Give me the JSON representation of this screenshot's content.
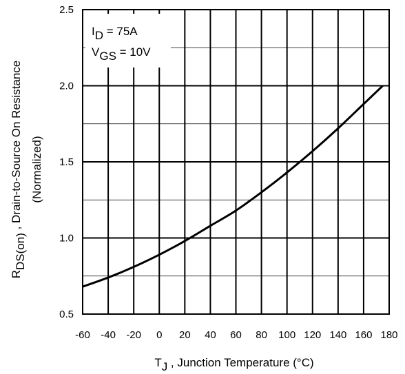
{
  "chart_data": {
    "type": "line",
    "title": "",
    "annotations": {
      "id": {
        "base": "I",
        "sub": "D",
        "rest": " = 75A"
      },
      "vgs": {
        "base": "V",
        "sub": "GS",
        "rest": " = 10V"
      }
    },
    "xlabel": {
      "base": "T",
      "sub": "J",
      "rest": " , Junction Temperature (°C)"
    },
    "ylabel": {
      "base": "R",
      "sub": "DS(on)",
      "rest": " , Drain-to-Source On Resistance",
      "line2": "(Normalized)"
    },
    "xlim": [
      -60,
      180
    ],
    "ylim": [
      0.5,
      2.5
    ],
    "x_ticks": [
      -60,
      -40,
      -20,
      0,
      20,
      40,
      60,
      80,
      100,
      120,
      140,
      160,
      180
    ],
    "x_tick_labels": [
      "-60",
      "-40",
      "-20",
      "0",
      "20",
      "40",
      "60",
      "80",
      "100",
      "120",
      "140",
      "160",
      "180"
    ],
    "y_ticks": [
      0.5,
      1.0,
      1.5,
      2.0,
      2.5
    ],
    "y_tick_labels": [
      "0.5",
      "1.0",
      "1.5",
      "2.0",
      "2.5"
    ],
    "y_minor_gridlines": [
      0.75,
      1.25,
      1.75,
      2.25
    ],
    "grid": true,
    "series": [
      {
        "x": [
          -60,
          -40,
          -20,
          0,
          20,
          40,
          60,
          80,
          100,
          120,
          140,
          160,
          175
        ],
        "y": [
          0.68,
          0.74,
          0.81,
          0.89,
          0.98,
          1.08,
          1.18,
          1.3,
          1.43,
          1.57,
          1.72,
          1.88,
          2.0
        ]
      }
    ]
  }
}
